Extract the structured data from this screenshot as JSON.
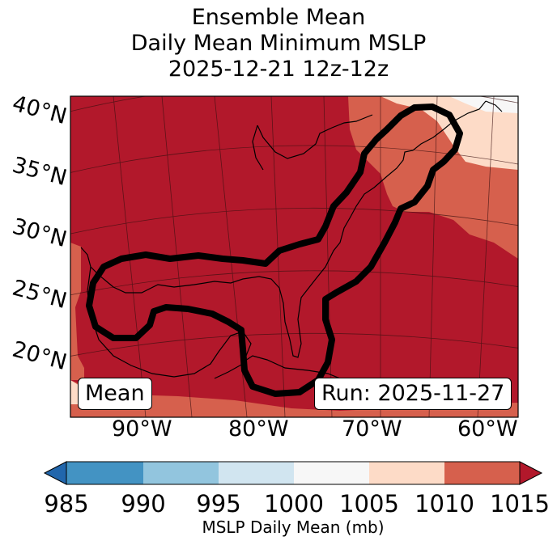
{
  "title": {
    "line1": "Ensemble Mean",
    "line2": "Daily Mean Minimum MSLP",
    "line3": "2025-12-21 12z-12z"
  },
  "map": {
    "lat_labels": [
      "40°N",
      "35°N",
      "30°N",
      "25°N",
      "20°N"
    ],
    "lon_labels": [
      "90°W",
      "80°W",
      "70°W",
      "60°W"
    ],
    "mean_label": "Mean",
    "run_label": "Run: 2025-11-27",
    "contour_description": "1015 mb contour",
    "colors": {
      "lt985": "#2166ac",
      "985-990": "#4393c3",
      "990-995": "#92c5de",
      "995-1000": "#d1e5f0",
      "1000-1005": "#f7f7f7",
      "1005-1010": "#fddbc7",
      "1010-1015": "#d6604d",
      "gt1015": "#b2182b"
    }
  },
  "colorbar": {
    "ticks": [
      "985",
      "990",
      "995",
      "1000",
      "1005",
      "1010",
      "1015"
    ],
    "label": "MSLP Daily Mean (mb)"
  }
}
